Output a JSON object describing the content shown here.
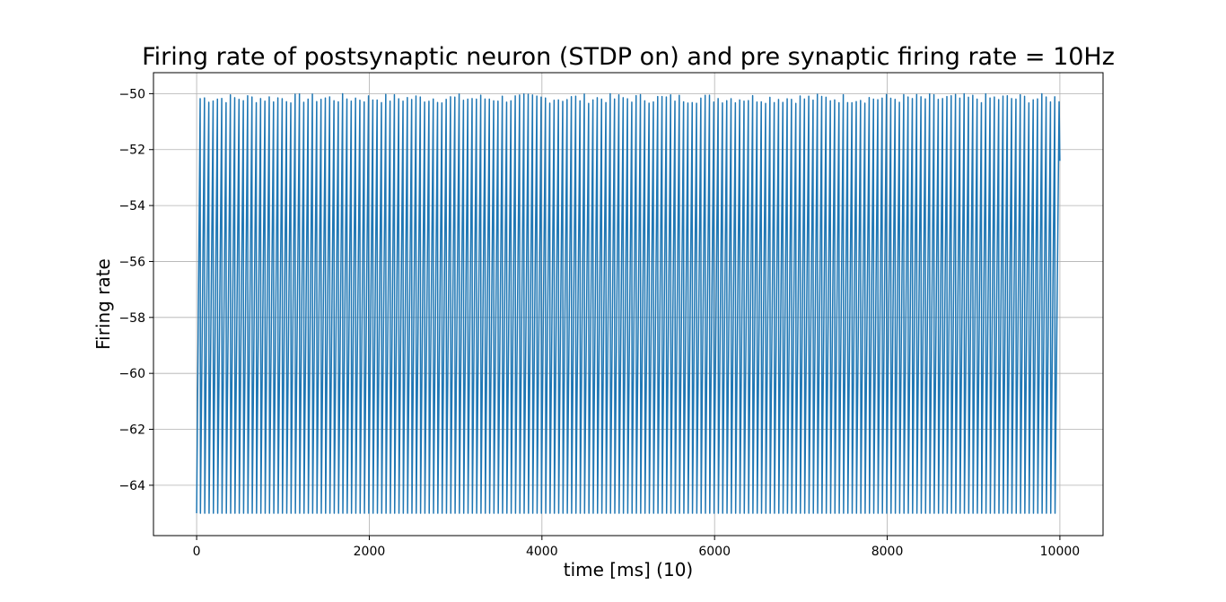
{
  "chart_data": {
    "type": "line",
    "title": "Firing rate of postsynaptic neuron (STDP on) and pre synaptic firing rate = 10Hz",
    "xlabel": "time [ms] (10)",
    "ylabel": "Firing rate",
    "xlim": [
      -500,
      10500
    ],
    "ylim": [
      -65.8,
      -49.25
    ],
    "xticks": [
      0,
      2000,
      4000,
      6000,
      8000,
      10000
    ],
    "xtick_labels": [
      "0",
      "2000",
      "4000",
      "6000",
      "8000",
      "10000"
    ],
    "yticks": [
      -64,
      -62,
      -60,
      -58,
      -56,
      -54,
      -52,
      -50
    ],
    "ytick_labels": [
      "−64",
      "−62",
      "−60",
      "−58",
      "−56",
      "−54",
      "−52",
      "−50"
    ],
    "grid": true,
    "legend": "none",
    "series": [
      {
        "color": "#1f77b4",
        "reset_value": -65.0,
        "peak_min": -50.35,
        "peak_max": -50.0,
        "spike_count": 200,
        "x_start": 0,
        "x_end": 10000,
        "final_value": -52.4
      }
    ]
  }
}
